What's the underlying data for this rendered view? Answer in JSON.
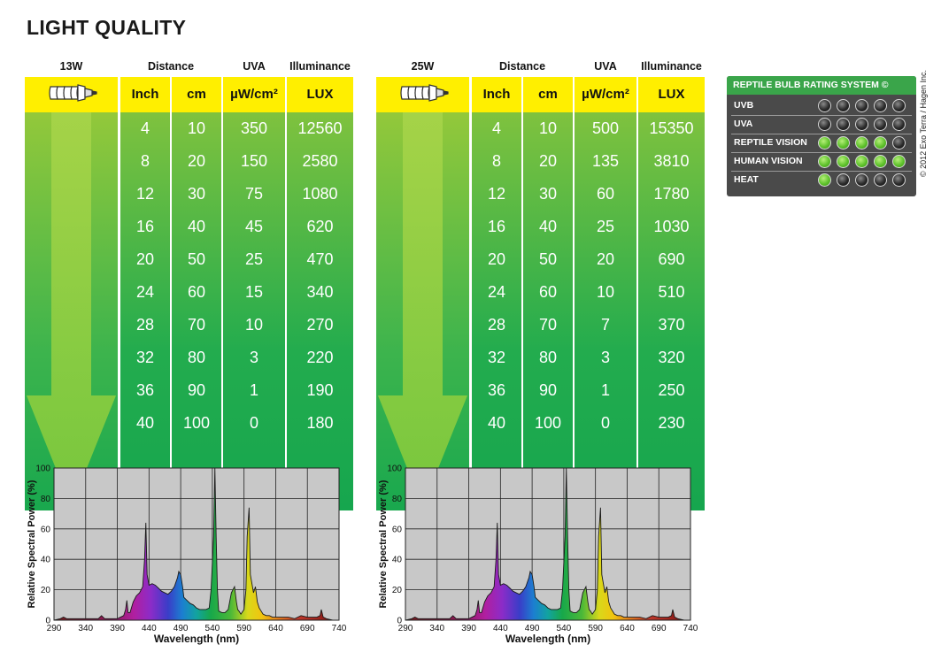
{
  "title": "LIGHT QUALITY",
  "headers": {
    "distance": "Distance",
    "uva": "UVA",
    "illuminance": "Illuminance",
    "inch": "Inch",
    "cm": "cm",
    "uva_unit": "µW/cm²",
    "lux": "LUX"
  },
  "tables": [
    {
      "wattage": "13W",
      "inch": [
        "4",
        "8",
        "12",
        "16",
        "20",
        "24",
        "28",
        "32",
        "36",
        "40"
      ],
      "cm": [
        "10",
        "20",
        "30",
        "40",
        "50",
        "60",
        "70",
        "80",
        "90",
        "100"
      ],
      "uva": [
        "350",
        "150",
        "75",
        "45",
        "25",
        "15",
        "10",
        "3",
        "1",
        "0"
      ],
      "lux": [
        "12560",
        "2580",
        "1080",
        "620",
        "470",
        "340",
        "270",
        "220",
        "190",
        "180"
      ]
    },
    {
      "wattage": "25W",
      "inch": [
        "4",
        "8",
        "12",
        "16",
        "20",
        "24",
        "28",
        "32",
        "36",
        "40"
      ],
      "cm": [
        "10",
        "20",
        "30",
        "40",
        "50",
        "60",
        "70",
        "80",
        "90",
        "100"
      ],
      "uva": [
        "500",
        "135",
        "60",
        "25",
        "20",
        "10",
        "7",
        "3",
        "1",
        "0"
      ],
      "lux": [
        "15350",
        "3810",
        "1780",
        "1030",
        "690",
        "510",
        "370",
        "320",
        "250",
        "230"
      ]
    }
  ],
  "rating": {
    "title": "REPTILE BULB RATING SYSTEM ©",
    "rows": [
      {
        "label": "UVB",
        "score": 0
      },
      {
        "label": "UVA",
        "score": 0
      },
      {
        "label": "REPTILE VISION",
        "score": 4
      },
      {
        "label": "HUMAN VISION",
        "score": 5
      },
      {
        "label": "HEAT",
        "score": 1
      }
    ],
    "max": 5
  },
  "copyright": "© 2012 Exo Terra / Hagen Inc.",
  "chart_data": [
    {
      "type": "area",
      "xlabel": "Wavelength (nm)",
      "ylabel": "Relative Spectral Power (%)",
      "xlim": [
        290,
        740
      ],
      "ylim": [
        0,
        100
      ],
      "xticks": [
        290,
        340,
        390,
        440,
        490,
        540,
        590,
        640,
        690,
        740
      ],
      "yticks": [
        0,
        20,
        40,
        60,
        80,
        100
      ],
      "grid": true,
      "x": [
        290,
        300,
        305,
        310,
        320,
        330,
        340,
        350,
        355,
        360,
        365,
        370,
        380,
        390,
        395,
        400,
        403,
        405,
        407,
        410,
        415,
        420,
        425,
        430,
        433,
        435,
        437,
        440,
        445,
        450,
        455,
        460,
        465,
        470,
        475,
        480,
        485,
        487,
        490,
        493,
        495,
        500,
        505,
        510,
        515,
        520,
        525,
        530,
        535,
        538,
        542,
        544,
        546,
        548,
        550,
        555,
        560,
        565,
        570,
        575,
        578,
        580,
        582,
        585,
        590,
        593,
        595,
        598,
        600,
        605,
        608,
        611,
        614,
        617,
        620,
        625,
        630,
        635,
        640,
        650,
        660,
        670,
        680,
        690,
        700,
        705,
        710,
        712,
        715,
        720,
        730,
        740
      ],
      "y": [
        0,
        1,
        2,
        1,
        1,
        1,
        1,
        1,
        1,
        1,
        3,
        1,
        1,
        1,
        2,
        3,
        7,
        13,
        5,
        5,
        12,
        16,
        18,
        22,
        40,
        64,
        30,
        23,
        24,
        23,
        21,
        19,
        18,
        17,
        19,
        22,
        28,
        32,
        30,
        22,
        15,
        13,
        11,
        10,
        8,
        7,
        7,
        7,
        8,
        20,
        55,
        100,
        55,
        20,
        6,
        5,
        5,
        7,
        18,
        22,
        12,
        7,
        6,
        4,
        7,
        20,
        55,
        74,
        30,
        18,
        22,
        12,
        8,
        6,
        4,
        3,
        3,
        2,
        2,
        2,
        2,
        1,
        3,
        2,
        2,
        2,
        3,
        7,
        2,
        1,
        0,
        0
      ]
    },
    {
      "type": "area",
      "xlabel": "Wavelength (nm)",
      "ylabel": "Relative Spectral Power (%)",
      "xlim": [
        290,
        740
      ],
      "ylim": [
        0,
        100
      ],
      "xticks": [
        290,
        340,
        390,
        440,
        490,
        540,
        590,
        640,
        690,
        740
      ],
      "yticks": [
        0,
        20,
        40,
        60,
        80,
        100
      ],
      "grid": true,
      "x": [
        290,
        300,
        305,
        310,
        320,
        330,
        340,
        350,
        355,
        360,
        365,
        370,
        380,
        390,
        395,
        400,
        403,
        405,
        407,
        410,
        415,
        420,
        425,
        430,
        433,
        435,
        437,
        440,
        445,
        450,
        455,
        460,
        465,
        470,
        475,
        480,
        485,
        487,
        490,
        493,
        495,
        500,
        505,
        510,
        515,
        520,
        525,
        530,
        535,
        538,
        542,
        544,
        546,
        548,
        550,
        555,
        560,
        565,
        570,
        575,
        578,
        580,
        582,
        585,
        590,
        593,
        595,
        598,
        600,
        605,
        608,
        611,
        614,
        617,
        620,
        625,
        630,
        635,
        640,
        650,
        660,
        670,
        680,
        690,
        700,
        705,
        710,
        712,
        715,
        720,
        730,
        740
      ],
      "y": [
        0,
        1,
        2,
        1,
        1,
        1,
        1,
        1,
        1,
        1,
        3,
        1,
        1,
        1,
        2,
        3,
        7,
        13,
        5,
        5,
        12,
        16,
        18,
        22,
        40,
        64,
        30,
        23,
        24,
        23,
        21,
        19,
        18,
        17,
        19,
        22,
        28,
        32,
        30,
        22,
        15,
        13,
        11,
        10,
        8,
        7,
        7,
        7,
        8,
        20,
        55,
        100,
        55,
        20,
        6,
        5,
        5,
        7,
        18,
        22,
        12,
        7,
        6,
        4,
        7,
        20,
        55,
        74,
        30,
        18,
        22,
        12,
        8,
        6,
        4,
        3,
        3,
        2,
        2,
        2,
        2,
        1,
        3,
        2,
        2,
        2,
        3,
        7,
        2,
        1,
        0,
        0
      ]
    }
  ]
}
